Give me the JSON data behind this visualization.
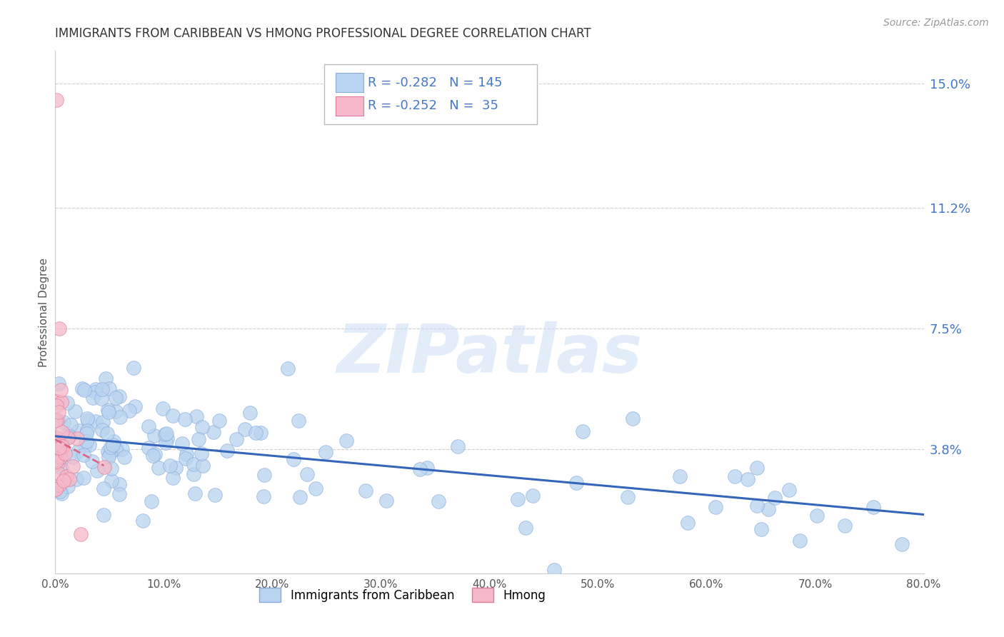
{
  "title": "IMMIGRANTS FROM CARIBBEAN VS HMONG PROFESSIONAL DEGREE CORRELATION CHART",
  "source": "Source: ZipAtlas.com",
  "ylabel": "Professional Degree",
  "xlim": [
    0.0,
    80.0
  ],
  "ylim": [
    0.0,
    16.0
  ],
  "ytick_vals": [
    3.8,
    7.5,
    11.2,
    15.0
  ],
  "ytick_labels": [
    "3.8%",
    "7.5%",
    "11.2%",
    "15.0%"
  ],
  "xtick_vals": [
    0.0,
    10.0,
    20.0,
    30.0,
    40.0,
    50.0,
    60.0,
    70.0,
    80.0
  ],
  "xtick_labels": [
    "0.0%",
    "10.0%",
    "20.0%",
    "30.0%",
    "40.0%",
    "50.0%",
    "60.0%",
    "70.0%",
    "80.0%"
  ],
  "caribbean_color": "#b8d4f0",
  "caribbean_edge_color": "#88aada",
  "hmong_color": "#f5b8c8",
  "hmong_edge_color": "#e07898",
  "trend_caribbean_color": "#3366bb",
  "trend_hmong_color": "#dd6688",
  "R_caribbean": -0.282,
  "N_caribbean": 145,
  "R_hmong": -0.252,
  "N_hmong": 35,
  "watermark": "ZIPatlas",
  "legend_caribbean": "Immigrants from Caribbean",
  "legend_hmong": "Hmong",
  "carib_trend_x0": 0.0,
  "carib_trend_y0": 4.2,
  "carib_trend_x1": 80.0,
  "carib_trend_y1": 1.8,
  "hmong_trend_x0": 0.0,
  "hmong_trend_y0": 4.1,
  "hmong_trend_x1": 4.5,
  "hmong_trend_y1": 3.3
}
